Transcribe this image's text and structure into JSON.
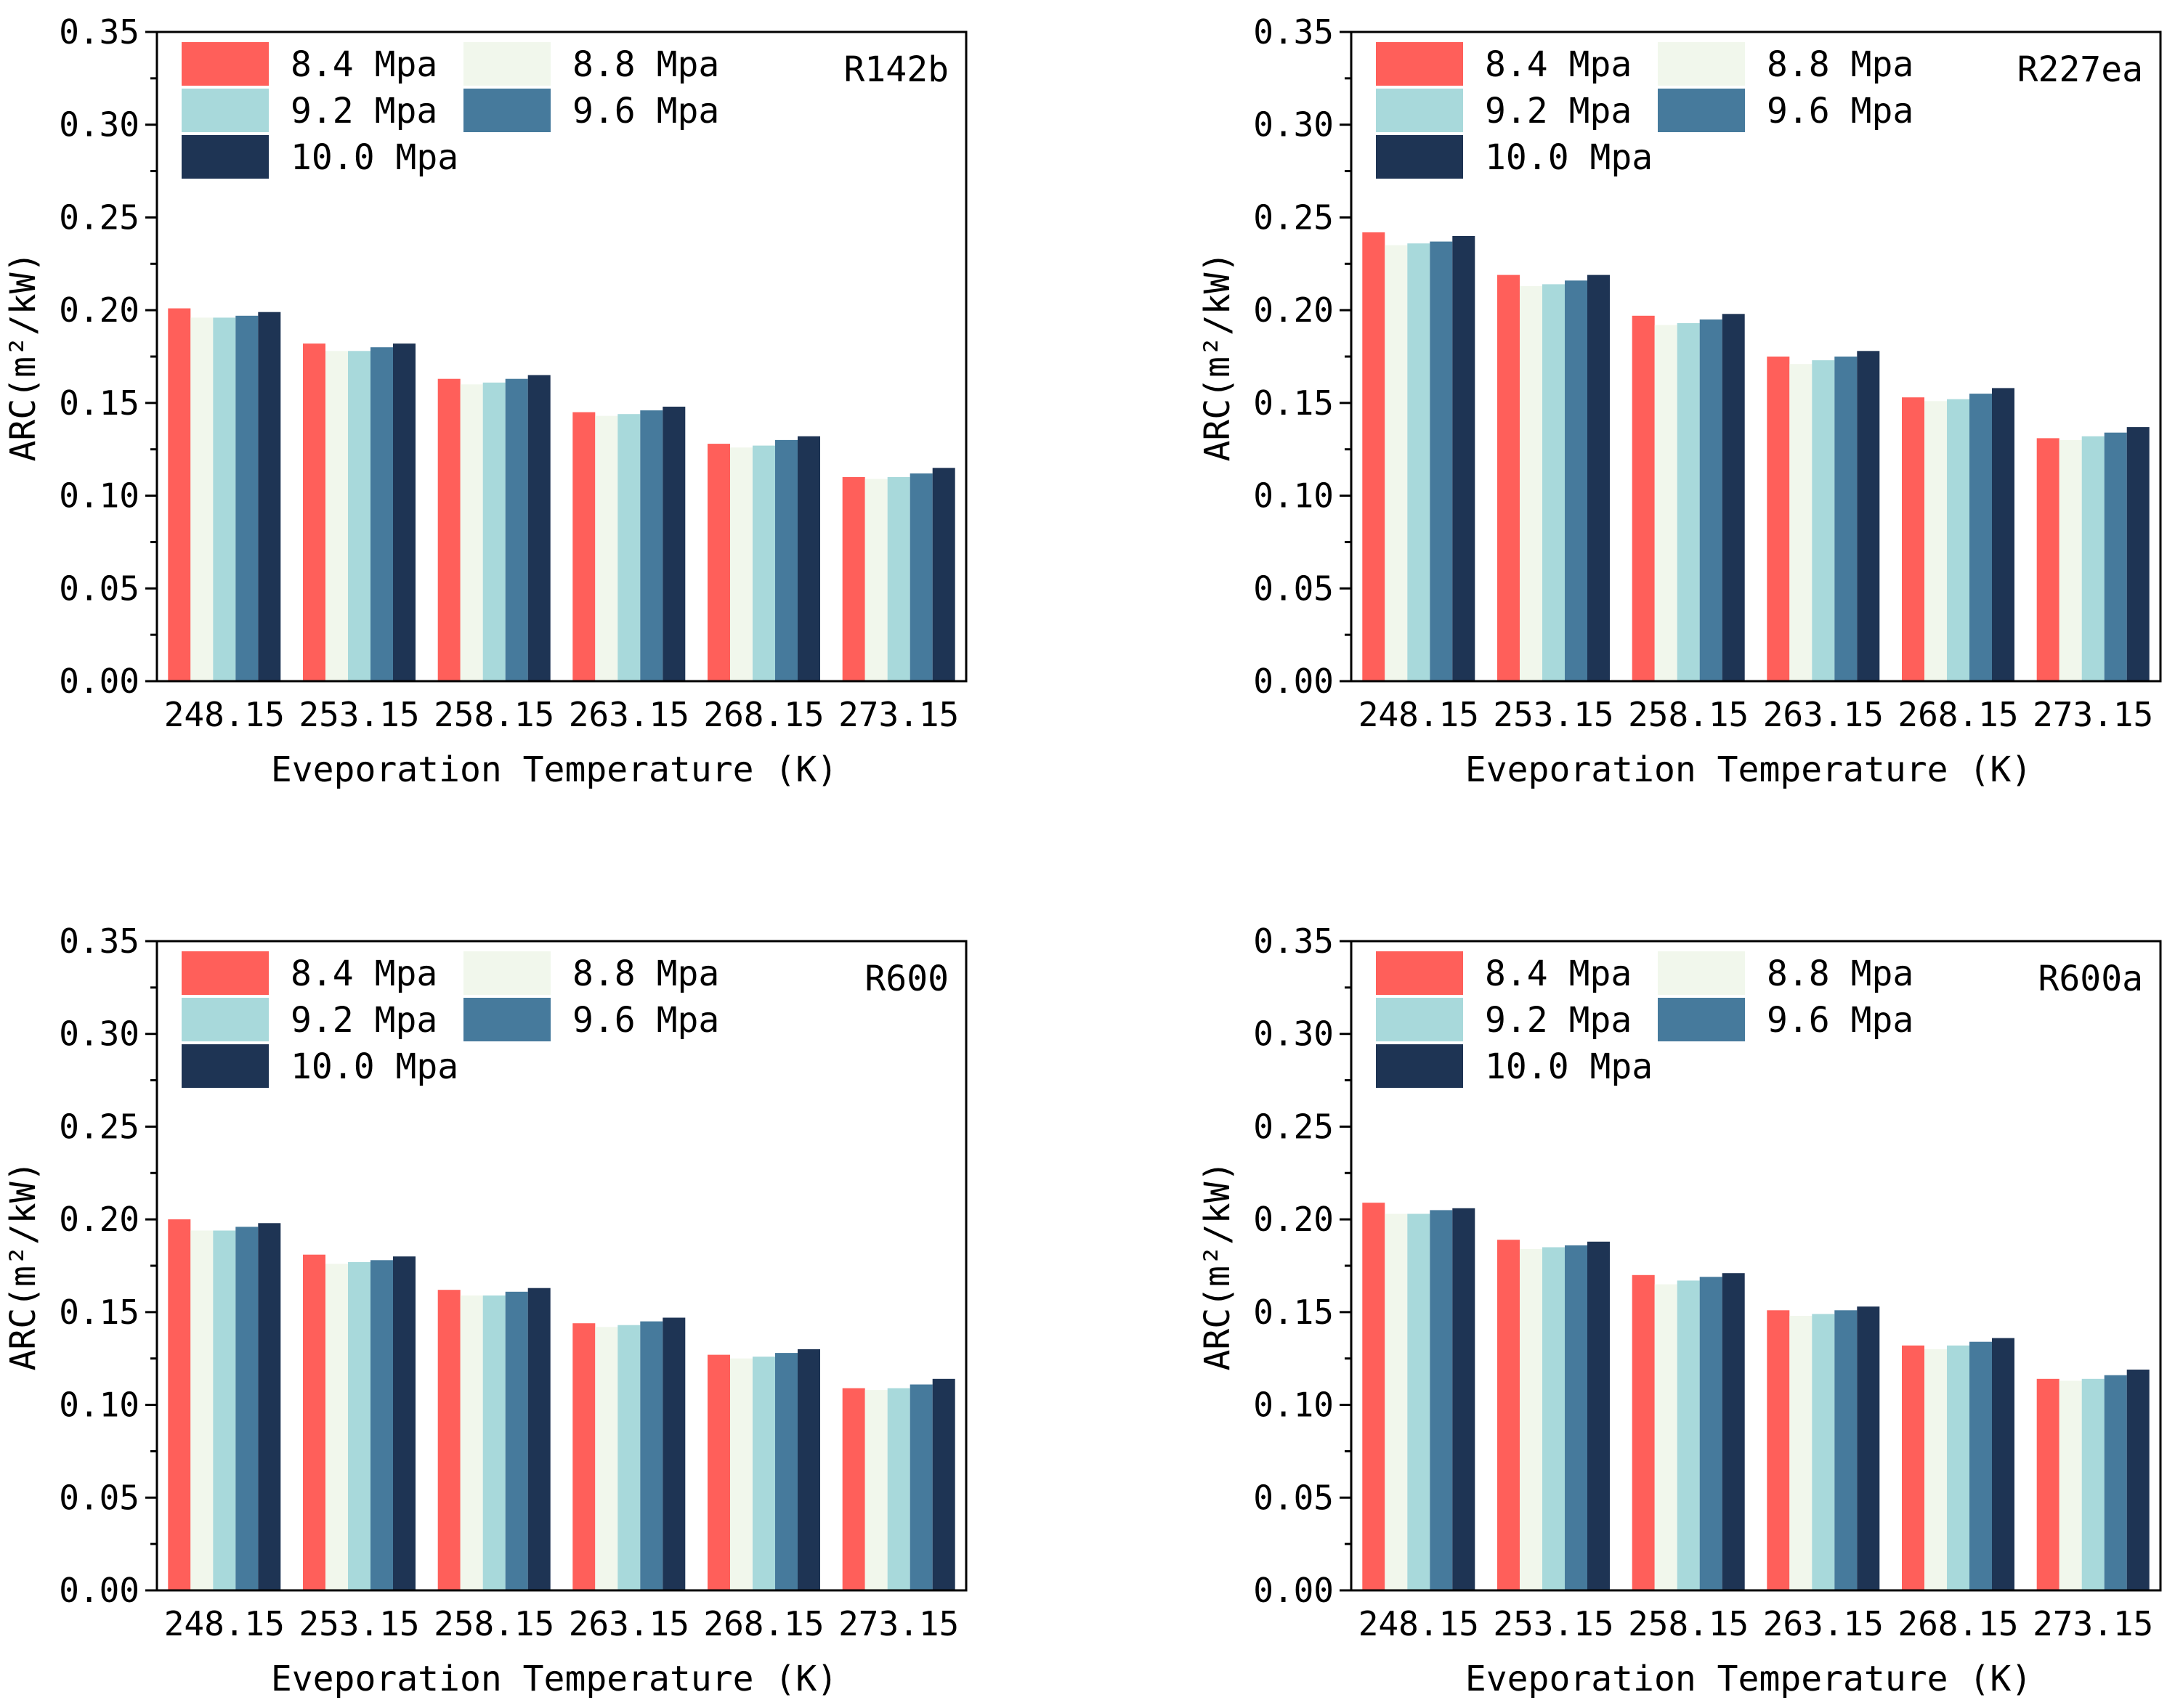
{
  "colors": {
    "8.4 Mpa": "#FF5F5A",
    "8.8 Mpa": "#F1F7EC",
    "9.2 Mpa": "#A8D9DB",
    "9.6 Mpa": "#467A9C",
    "10.0 Mpa": "#1E3454",
    "axis": "#000000",
    "background": "#ffffff"
  },
  "chart_data": [
    {
      "type": "bar",
      "panel_label": "R142b",
      "xlabel": "Eveporation Temperature (K)",
      "ylabel": "ARC(m²/kW)",
      "ylim": [
        0,
        0.35
      ],
      "yticks": [
        "0.00",
        "0.05",
        "0.10",
        "0.15",
        "0.20",
        "0.25",
        "0.30",
        "0.35"
      ],
      "categories": [
        "248.15",
        "253.15",
        "258.15",
        "263.15",
        "268.15",
        "273.15"
      ],
      "legend_position": "top-left",
      "series": [
        {
          "name": "8.4 Mpa",
          "values": [
            0.201,
            0.182,
            0.163,
            0.145,
            0.128,
            0.11
          ]
        },
        {
          "name": "8.8 Mpa",
          "values": [
            0.196,
            0.178,
            0.16,
            0.143,
            0.126,
            0.109
          ]
        },
        {
          "name": "9.2 Mpa",
          "values": [
            0.196,
            0.178,
            0.161,
            0.144,
            0.127,
            0.11
          ]
        },
        {
          "name": "9.6 Mpa",
          "values": [
            0.197,
            0.18,
            0.163,
            0.146,
            0.13,
            0.112
          ]
        },
        {
          "name": "10.0 Mpa",
          "values": [
            0.199,
            0.182,
            0.165,
            0.148,
            0.132,
            0.115
          ]
        }
      ]
    },
    {
      "type": "bar",
      "panel_label": "R227ea",
      "xlabel": "Eveporation Temperature (K)",
      "ylabel": "ARC(m²/kW)",
      "ylim": [
        0,
        0.35
      ],
      "yticks": [
        "0.00",
        "0.05",
        "0.10",
        "0.15",
        "0.20",
        "0.25",
        "0.30",
        "0.35"
      ],
      "categories": [
        "248.15",
        "253.15",
        "258.15",
        "263.15",
        "268.15",
        "273.15"
      ],
      "legend_position": "top-left",
      "series": [
        {
          "name": "8.4 Mpa",
          "values": [
            0.242,
            0.219,
            0.197,
            0.175,
            0.153,
            0.131
          ]
        },
        {
          "name": "8.8 Mpa",
          "values": [
            0.235,
            0.213,
            0.192,
            0.171,
            0.151,
            0.13
          ]
        },
        {
          "name": "9.2 Mpa",
          "values": [
            0.236,
            0.214,
            0.193,
            0.173,
            0.152,
            0.132
          ]
        },
        {
          "name": "9.6 Mpa",
          "values": [
            0.237,
            0.216,
            0.195,
            0.175,
            0.155,
            0.134
          ]
        },
        {
          "name": "10.0 Mpa",
          "values": [
            0.24,
            0.219,
            0.198,
            0.178,
            0.158,
            0.137
          ]
        }
      ]
    },
    {
      "type": "bar",
      "panel_label": "R600",
      "xlabel": "Eveporation Temperature (K)",
      "ylabel": "ARC(m²/kW)",
      "ylim": [
        0,
        0.35
      ],
      "yticks": [
        "0.00",
        "0.05",
        "0.10",
        "0.15",
        "0.20",
        "0.25",
        "0.30",
        "0.35"
      ],
      "categories": [
        "248.15",
        "253.15",
        "258.15",
        "263.15",
        "268.15",
        "273.15"
      ],
      "legend_position": "top-left",
      "series": [
        {
          "name": "8.4 Mpa",
          "values": [
            0.2,
            0.181,
            0.162,
            0.144,
            0.127,
            0.109
          ]
        },
        {
          "name": "8.8 Mpa",
          "values": [
            0.194,
            0.176,
            0.159,
            0.142,
            0.125,
            0.108
          ]
        },
        {
          "name": "9.2 Mpa",
          "values": [
            0.194,
            0.177,
            0.159,
            0.143,
            0.126,
            0.109
          ]
        },
        {
          "name": "9.6 Mpa",
          "values": [
            0.196,
            0.178,
            0.161,
            0.145,
            0.128,
            0.111
          ]
        },
        {
          "name": "10.0 Mpa",
          "values": [
            0.198,
            0.18,
            0.163,
            0.147,
            0.13,
            0.114
          ]
        }
      ]
    },
    {
      "type": "bar",
      "panel_label": "R600a",
      "xlabel": "Eveporation Temperature (K)",
      "ylabel": "ARC(m²/kW)",
      "ylim": [
        0,
        0.35
      ],
      "yticks": [
        "0.00",
        "0.05",
        "0.10",
        "0.15",
        "0.20",
        "0.25",
        "0.30",
        "0.35"
      ],
      "categories": [
        "248.15",
        "253.15",
        "258.15",
        "263.15",
        "268.15",
        "273.15"
      ],
      "legend_position": "top-left",
      "series": [
        {
          "name": "8.4 Mpa",
          "values": [
            0.209,
            0.189,
            0.17,
            0.151,
            0.132,
            0.114
          ]
        },
        {
          "name": "8.8 Mpa",
          "values": [
            0.203,
            0.184,
            0.165,
            0.148,
            0.13,
            0.113
          ]
        },
        {
          "name": "9.2 Mpa",
          "values": [
            0.203,
            0.185,
            0.167,
            0.149,
            0.132,
            0.114
          ]
        },
        {
          "name": "9.6 Mpa",
          "values": [
            0.205,
            0.186,
            0.169,
            0.151,
            0.134,
            0.116
          ]
        },
        {
          "name": "10.0 Mpa",
          "values": [
            0.206,
            0.188,
            0.171,
            0.153,
            0.136,
            0.119
          ]
        }
      ]
    }
  ]
}
